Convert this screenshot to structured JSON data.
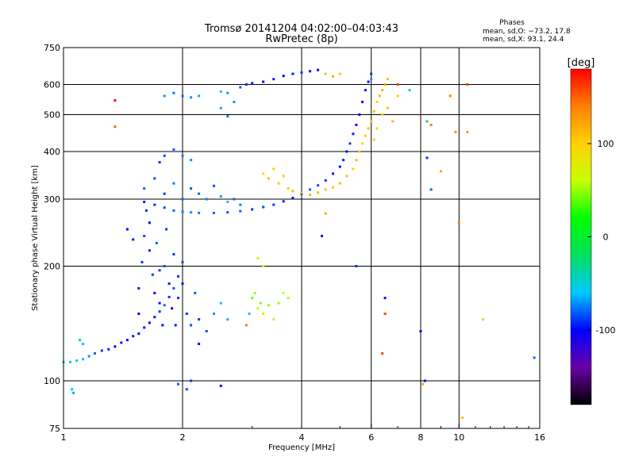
{
  "chart_data": {
    "type": "scatter",
    "title": "Tromsø 20141204 04:02:00–04:03:43",
    "subtitle": "RwPretec (8p)",
    "xlabel": "Frequency [MHz]",
    "ylabel": "Stationary phase Virtual Height [km]",
    "x_scale": "log",
    "y_scale": "log",
    "xlim": [
      1,
      16
    ],
    "ylim": [
      75,
      750
    ],
    "x_ticks": [
      1,
      2,
      4,
      6,
      8,
      10,
      16
    ],
    "y_ticks": [
      75,
      100,
      200,
      300,
      400,
      500,
      600,
      750
    ],
    "x_gridlines": [
      2,
      4,
      6,
      8,
      10
    ],
    "y_gridlines": [
      100,
      200,
      300,
      400,
      500,
      600
    ],
    "grid": true,
    "phases": {
      "heading": "Phases",
      "line_o": "mean, sd,O: −73.2, 17.8",
      "line_x": "mean, sd,X:  93.1, 24.4"
    },
    "colorbar": {
      "label": "[deg]",
      "min": -180,
      "max": 180,
      "ticks": [
        100,
        0,
        -100
      ],
      "colormap": "rainbow",
      "colors": [
        "#000000",
        "#6a00a8",
        "#0000ff",
        "#00c8ff",
        "#00e060",
        "#00ff00",
        "#c8ff00",
        "#ffd000",
        "#ff8000",
        "#ff0000"
      ]
    },
    "series": [
      {
        "points": [
          [
            1.0,
            112,
            -60
          ],
          [
            1.04,
            112,
            -55
          ],
          [
            1.08,
            113,
            -50
          ],
          [
            1.12,
            114,
            -60
          ],
          [
            1.16,
            116,
            -70
          ],
          [
            1.2,
            118,
            -80
          ],
          [
            1.25,
            120,
            -90
          ],
          [
            1.3,
            121,
            -95
          ],
          [
            1.35,
            123,
            -100
          ],
          [
            1.4,
            126,
            -95
          ],
          [
            1.45,
            128,
            -100
          ],
          [
            1.5,
            131,
            -95
          ],
          [
            1.55,
            133,
            -100
          ],
          [
            1.6,
            138,
            -95
          ],
          [
            1.65,
            142,
            -100
          ],
          [
            1.7,
            147,
            -95
          ],
          [
            1.75,
            152,
            -90
          ],
          [
            1.8,
            158,
            -80
          ],
          [
            1.85,
            166,
            -90
          ],
          [
            1.9,
            175,
            -85
          ],
          [
            1.95,
            188,
            -90
          ],
          [
            2.0,
            205,
            -85
          ],
          [
            1.1,
            128,
            -50
          ],
          [
            1.12,
            125,
            -55
          ],
          [
            1.05,
            95,
            -60
          ],
          [
            1.06,
            93,
            -65
          ]
        ]
      },
      {
        "points": [
          [
            1.55,
            150,
            -100
          ],
          [
            1.55,
            175,
            -95
          ],
          [
            1.58,
            205,
            -90
          ],
          [
            1.6,
            240,
            -85
          ],
          [
            1.62,
            280,
            -90
          ],
          [
            1.65,
            260,
            -100
          ],
          [
            1.65,
            220,
            -95
          ],
          [
            1.68,
            190,
            -90
          ],
          [
            1.7,
            170,
            -100
          ],
          [
            1.72,
            230,
            -80
          ],
          [
            1.75,
            195,
            -90
          ],
          [
            1.75,
            160,
            -95
          ],
          [
            1.78,
            140,
            -100
          ],
          [
            1.8,
            200,
            -85
          ],
          [
            1.82,
            250,
            -90
          ],
          [
            1.85,
            180,
            -95
          ],
          [
            1.88,
            155,
            -100
          ],
          [
            1.9,
            215,
            -90
          ],
          [
            1.92,
            140,
            -95
          ],
          [
            1.95,
            165,
            -90
          ],
          [
            2.0,
            180,
            -95
          ],
          [
            2.05,
            150,
            -90
          ],
          [
            2.1,
            140,
            -85
          ],
          [
            2.15,
            170,
            -80
          ],
          [
            2.2,
            145,
            -90
          ],
          [
            2.3,
            135,
            -85
          ],
          [
            2.4,
            150,
            -70
          ],
          [
            2.5,
            160,
            -60
          ],
          [
            2.6,
            145,
            -65
          ],
          [
            2.2,
            125,
            -100
          ],
          [
            2.1,
            100,
            -90
          ],
          [
            2.05,
            95,
            -85
          ],
          [
            1.95,
            98,
            -80
          ],
          [
            1.5,
            235,
            -95
          ],
          [
            1.45,
            250,
            -100
          ]
        ]
      },
      {
        "points": [
          [
            1.6,
            295,
            -95
          ],
          [
            1.7,
            290,
            -90
          ],
          [
            1.8,
            285,
            -85
          ],
          [
            1.9,
            280,
            -80
          ],
          [
            2.0,
            278,
            -75
          ],
          [
            2.1,
            277,
            -70
          ],
          [
            2.2,
            276,
            -75
          ],
          [
            2.4,
            276,
            -80
          ],
          [
            2.6,
            277,
            -85
          ],
          [
            2.8,
            279,
            -80
          ],
          [
            3.0,
            282,
            -90
          ],
          [
            3.2,
            286,
            -85
          ],
          [
            3.4,
            290,
            -90
          ],
          [
            3.6,
            296,
            -95
          ],
          [
            3.8,
            302,
            -100
          ],
          [
            4.0,
            310,
            -90
          ],
          [
            4.2,
            318,
            -80
          ],
          [
            4.4,
            326,
            -85
          ],
          [
            4.6,
            336,
            -90
          ],
          [
            4.8,
            350,
            -95
          ],
          [
            5.0,
            365,
            -100
          ],
          [
            5.1,
            380,
            -95
          ],
          [
            5.2,
            400,
            -100
          ],
          [
            5.3,
            420,
            -90
          ],
          [
            5.4,
            445,
            -95
          ],
          [
            5.5,
            470,
            -100
          ],
          [
            5.6,
            500,
            -105
          ],
          [
            5.7,
            540,
            -100
          ],
          [
            5.8,
            580,
            -95
          ],
          [
            5.9,
            610,
            -100
          ],
          [
            6.0,
            640,
            -90
          ]
        ]
      },
      {
        "points": [
          [
            1.6,
            320,
            -80
          ],
          [
            1.7,
            340,
            -85
          ],
          [
            1.8,
            310,
            -90
          ],
          [
            1.9,
            330,
            -75
          ],
          [
            2.0,
            300,
            -80
          ],
          [
            2.1,
            320,
            -85
          ],
          [
            2.2,
            310,
            -80
          ],
          [
            2.3,
            300,
            -75
          ],
          [
            2.4,
            325,
            -85
          ],
          [
            2.5,
            305,
            -70
          ],
          [
            2.6,
            295,
            -60
          ],
          [
            2.7,
            300,
            -80
          ],
          [
            2.8,
            290,
            -75
          ],
          [
            1.75,
            375,
            -90
          ],
          [
            1.8,
            390,
            -85
          ],
          [
            1.9,
            405,
            -80
          ],
          [
            2.0,
            390,
            -75
          ],
          [
            2.1,
            380,
            -70
          ]
        ]
      },
      {
        "points": [
          [
            1.8,
            560,
            -70
          ],
          [
            1.9,
            570,
            -75
          ],
          [
            2.0,
            560,
            -80
          ],
          [
            2.1,
            555,
            -70
          ],
          [
            2.2,
            560,
            -65
          ],
          [
            2.5,
            575,
            -60
          ],
          [
            2.6,
            570,
            -70
          ],
          [
            2.5,
            520,
            -65
          ],
          [
            2.6,
            495,
            -75
          ],
          [
            2.7,
            540,
            -70
          ],
          [
            2.8,
            590,
            -80
          ],
          [
            2.9,
            600,
            -90
          ],
          [
            3.0,
            605,
            -95
          ],
          [
            3.2,
            610,
            -100
          ],
          [
            3.4,
            620,
            -95
          ],
          [
            3.6,
            632,
            -100
          ],
          [
            3.8,
            640,
            -95
          ],
          [
            4.0,
            645,
            -90
          ],
          [
            4.2,
            650,
            -110
          ],
          [
            4.4,
            655,
            -105
          ]
        ]
      },
      {
        "points": [
          [
            3.2,
            350,
            100
          ],
          [
            3.3,
            340,
            110
          ],
          [
            3.4,
            360,
            90
          ],
          [
            3.5,
            330,
            105
          ],
          [
            3.6,
            345,
            95
          ],
          [
            3.7,
            320,
            100
          ],
          [
            3.8,
            315,
            110
          ],
          [
            4.0,
            312,
            120
          ],
          [
            4.2,
            308,
            115
          ],
          [
            4.4,
            312,
            110
          ],
          [
            4.6,
            318,
            105
          ],
          [
            4.8,
            322,
            100
          ],
          [
            5.0,
            330,
            110
          ],
          [
            5.2,
            345,
            105
          ],
          [
            5.4,
            360,
            100
          ],
          [
            5.5,
            380,
            110
          ],
          [
            5.6,
            400,
            105
          ],
          [
            5.7,
            420,
            95
          ],
          [
            5.8,
            440,
            100
          ],
          [
            5.9,
            460,
            110
          ],
          [
            6.0,
            480,
            105
          ],
          [
            6.1,
            510,
            110
          ],
          [
            6.2,
            540,
            100
          ],
          [
            6.3,
            560,
            115
          ],
          [
            6.4,
            580,
            120
          ],
          [
            6.5,
            600,
            125
          ],
          [
            6.6,
            620,
            110
          ],
          [
            6.1,
            430,
            95
          ],
          [
            6.2,
            460,
            90
          ],
          [
            6.4,
            500,
            100
          ],
          [
            6.6,
            520,
            105
          ],
          [
            6.8,
            480,
            110
          ],
          [
            7.0,
            560,
            100
          ],
          [
            4.6,
            640,
            110
          ],
          [
            4.8,
            630,
            115
          ],
          [
            5.0,
            640,
            105
          ]
        ]
      },
      {
        "points": [
          [
            3.0,
            165,
            40
          ],
          [
            3.05,
            170,
            50
          ],
          [
            3.1,
            155,
            60
          ],
          [
            3.15,
            160,
            45
          ],
          [
            3.2,
            150,
            55
          ],
          [
            3.3,
            158,
            50
          ],
          [
            3.4,
            145,
            60
          ],
          [
            3.5,
            160,
            50
          ],
          [
            3.6,
            170,
            60
          ],
          [
            3.7,
            165,
            55
          ],
          [
            3.2,
            200,
            60
          ],
          [
            3.1,
            210,
            80
          ],
          [
            2.95,
            150,
            -60
          ],
          [
            2.9,
            140,
            140
          ]
        ]
      },
      {
        "points": [
          [
            1.35,
            545,
            180
          ],
          [
            1.35,
            465,
            150
          ],
          [
            8.3,
            480,
            -20
          ],
          [
            8.5,
            470,
            140
          ],
          [
            8.3,
            385,
            -90
          ],
          [
            8.5,
            318,
            -80
          ],
          [
            9.5,
            560,
            140
          ],
          [
            9.8,
            450,
            130
          ],
          [
            10.5,
            450,
            130
          ],
          [
            9.0,
            355,
            120
          ],
          [
            10.0,
            260,
            140
          ],
          [
            10.5,
            600,
            160
          ],
          [
            11.5,
            145,
            90
          ],
          [
            15.5,
            115,
            -80
          ],
          [
            8.0,
            135,
            -100
          ],
          [
            8.2,
            100,
            -105
          ],
          [
            8.1,
            98,
            120
          ],
          [
            10.2,
            80,
            110
          ],
          [
            6.5,
            150,
            160
          ],
          [
            6.4,
            118,
            160
          ],
          [
            6.5,
            165,
            -110
          ],
          [
            2.5,
            97,
            -100
          ],
          [
            4.5,
            240,
            -110
          ],
          [
            5.5,
            200,
            -90
          ],
          [
            4.6,
            275,
            120
          ],
          [
            7.5,
            580,
            -40
          ],
          [
            6.0,
            620,
            -70
          ],
          [
            7.0,
            600,
            160
          ]
        ]
      }
    ]
  }
}
